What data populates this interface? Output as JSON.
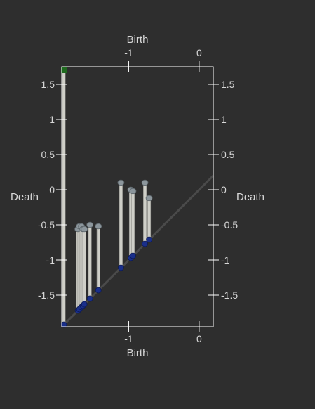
{
  "chart_data": {
    "type": "scatter",
    "title": "",
    "xlabel": "Birth",
    "ylabel": "Death",
    "xlim": [
      -1.95,
      0.2
    ],
    "ylim": [
      -1.95,
      1.75
    ],
    "x_ticks": [
      {
        "value": -1,
        "label": "-1"
      },
      {
        "value": 0,
        "label": "0"
      }
    ],
    "y_ticks": [
      {
        "value": 1.5,
        "label": "1.5"
      },
      {
        "value": 1,
        "label": "1"
      },
      {
        "value": 0.5,
        "label": "0.5"
      },
      {
        "value": 0,
        "label": "0"
      },
      {
        "value": -0.5,
        "label": "-0.5"
      },
      {
        "value": -1,
        "label": "-1"
      },
      {
        "value": -1.5,
        "label": "-1.5"
      }
    ],
    "right_y_ticks": [
      {
        "value": 1.5,
        "label": "1.5"
      },
      {
        "value": 1,
        "label": "1"
      },
      {
        "value": 0.5,
        "label": "0.5"
      },
      {
        "value": 0,
        "label": "0"
      },
      {
        "value": -0.5,
        "label": "-0.5"
      },
      {
        "value": -1,
        "label": "-1"
      },
      {
        "value": -1.5,
        "label": "-1.5"
      }
    ],
    "diagonal": true,
    "pairs": [
      {
        "birth": -1.92,
        "death": 1.7,
        "essential": true
      },
      {
        "birth": -1.72,
        "death": -0.56
      },
      {
        "birth": -1.7,
        "death": -0.52
      },
      {
        "birth": -1.67,
        "death": -0.52
      },
      {
        "birth": -1.65,
        "death": -0.56
      },
      {
        "birth": -1.63,
        "death": -0.56
      },
      {
        "birth": -1.55,
        "death": -0.5
      },
      {
        "birth": -1.43,
        "death": -0.52
      },
      {
        "birth": -1.11,
        "death": 0.1
      },
      {
        "birth": -0.97,
        "death": 0.0
      },
      {
        "birth": -0.94,
        "death": -0.02
      },
      {
        "birth": -0.77,
        "death": 0.1
      },
      {
        "birth": -0.71,
        "death": -0.12
      }
    ],
    "colors": {
      "background": "#2e2e2e",
      "frame": "#ffffff",
      "text": "#d8d8d8",
      "diagonal": "#4a4a4a",
      "stem": "#cfcfc8",
      "birth_point": "#1a2f8a",
      "death_point": "#8c969c",
      "essential_point": "#1f6a1f"
    }
  }
}
